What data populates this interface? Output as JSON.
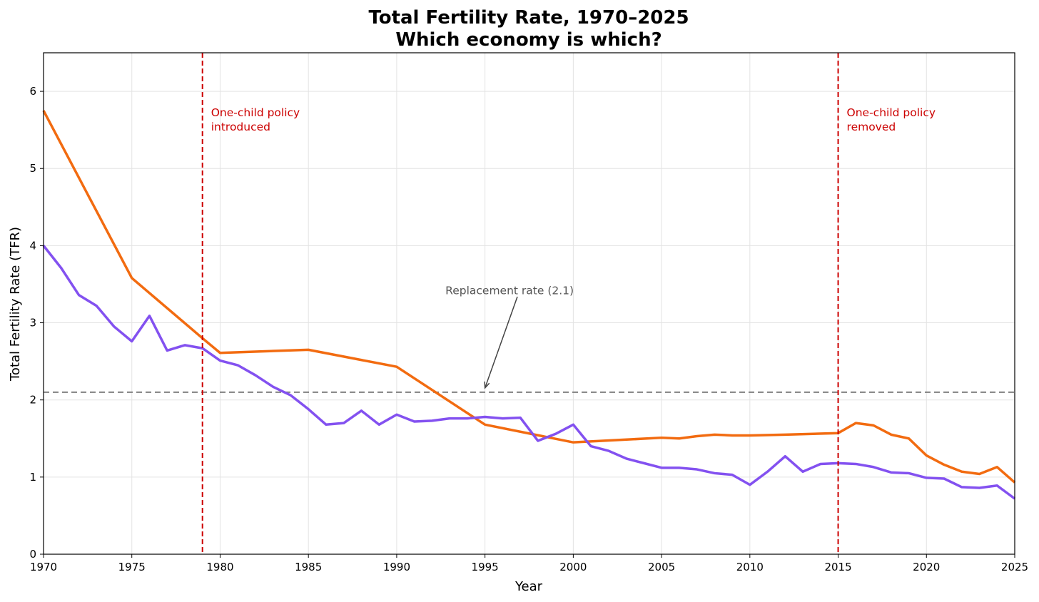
{
  "chart_data": {
    "type": "line",
    "title": "Total Fertility Rate, 1970–2025",
    "subtitle": "Which economy is which?",
    "xlabel": "Year",
    "ylabel": "Total Fertility Rate (TFR)",
    "xlim": [
      1970,
      2025
    ],
    "ylim": [
      0,
      6.5
    ],
    "xticks": [
      1970,
      1975,
      1980,
      1985,
      1990,
      1995,
      2000,
      2005,
      2010,
      2015,
      2020,
      2025
    ],
    "yticks": [
      0,
      1,
      2,
      3,
      4,
      5,
      6
    ],
    "grid": true,
    "series": [
      {
        "name": "orange",
        "color": "#f26b10",
        "x": [
          1970,
          1975,
          1979,
          1980,
          1985,
          1990,
          1995,
          2000,
          2005,
          2006,
          2007,
          2008,
          2009,
          2010,
          2012,
          2015,
          2016,
          2017,
          2018,
          2019,
          2020,
          2021,
          2022,
          2023,
          2024,
          2025
        ],
        "y": [
          5.75,
          3.58,
          2.8,
          2.61,
          2.65,
          2.43,
          1.68,
          1.45,
          1.51,
          1.5,
          1.53,
          1.55,
          1.54,
          1.54,
          1.55,
          1.57,
          1.7,
          1.67,
          1.55,
          1.5,
          1.28,
          1.16,
          1.07,
          1.04,
          1.13,
          0.93
        ]
      },
      {
        "name": "purple",
        "color": "#8351f0",
        "x": [
          1970,
          1971,
          1972,
          1973,
          1974,
          1975,
          1976,
          1977,
          1978,
          1979,
          1980,
          1981,
          1982,
          1983,
          1984,
          1985,
          1986,
          1987,
          1988,
          1989,
          1990,
          1991,
          1992,
          1993,
          1994,
          1995,
          1996,
          1997,
          1998,
          1999,
          2000,
          2001,
          2002,
          2003,
          2004,
          2005,
          2006,
          2007,
          2008,
          2009,
          2010,
          2011,
          2012,
          2013,
          2014,
          2015,
          2016,
          2017,
          2018,
          2019,
          2020,
          2021,
          2022,
          2023,
          2024,
          2025
        ],
        "y": [
          4.0,
          3.71,
          3.36,
          3.22,
          2.95,
          2.76,
          3.09,
          2.64,
          2.71,
          2.67,
          2.51,
          2.45,
          2.32,
          2.17,
          2.06,
          1.88,
          1.68,
          1.7,
          1.86,
          1.68,
          1.81,
          1.72,
          1.73,
          1.76,
          1.76,
          1.78,
          1.76,
          1.77,
          1.47,
          1.56,
          1.68,
          1.4,
          1.34,
          1.24,
          1.18,
          1.12,
          1.12,
          1.1,
          1.05,
          1.03,
          0.9,
          1.07,
          1.27,
          1.07,
          1.17,
          1.18,
          1.17,
          1.13,
          1.06,
          1.05,
          0.99,
          0.98,
          0.87,
          0.86,
          0.89,
          0.72
        ]
      }
    ],
    "reference_line": {
      "y": 2.1,
      "color": "#808080"
    },
    "annotations": [
      {
        "x": 1979,
        "lines": [
          "One-child policy",
          "introduced"
        ],
        "color": "#cc0000"
      },
      {
        "x": 2015,
        "lines": [
          "One-child policy",
          "removed"
        ],
        "color": "#cc0000"
      },
      {
        "text": "Replacement rate (2.1)",
        "text_x": 1993,
        "text_y": 3.4,
        "arrow_to": [
          1995,
          2.1
        ]
      }
    ]
  }
}
